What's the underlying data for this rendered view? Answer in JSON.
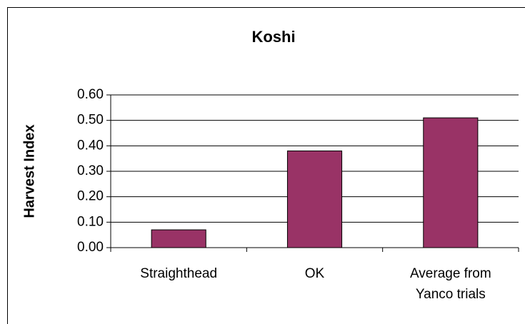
{
  "chart_data": {
    "type": "bar",
    "title": "Koshi",
    "y_label": "Harvest Index",
    "categories": [
      "Straighthead",
      "OK",
      "Average from Yanco trials"
    ],
    "values": [
      0.07,
      0.38,
      0.51
    ],
    "color": "#993366",
    "ylim": [
      0,
      0.6
    ],
    "yticks": [
      {
        "value": 0,
        "label": "0.00"
      },
      {
        "value": 0.1,
        "label": "0.10"
      },
      {
        "value": 0.2,
        "label": "0.20"
      },
      {
        "value": 0.3,
        "label": "0.30"
      },
      {
        "value": 0.4,
        "label": "0.40"
      },
      {
        "value": 0.5,
        "label": "0.50"
      },
      {
        "value": 0.6,
        "label": "0.60"
      }
    ],
    "grid": true
  }
}
